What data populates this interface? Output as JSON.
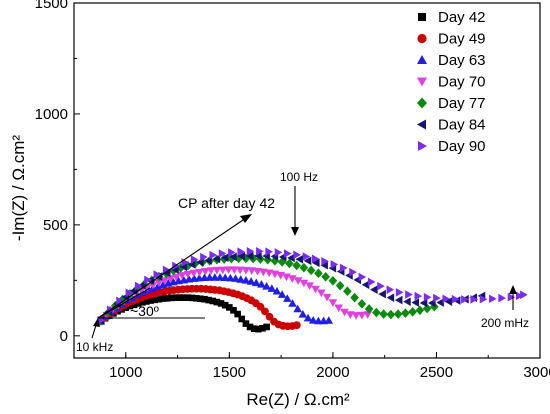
{
  "chart_data": {
    "type": "scatter",
    "xlabel": "Re(Z) / Ω.cm²",
    "ylabel": "-Im(Z) / Ω.cm²",
    "xlim": [
      750,
      3000
    ],
    "ylim": [
      -100,
      1500
    ],
    "xticks": [
      "1000",
      "1500",
      "2000",
      "2500",
      "3000"
    ],
    "yticks": [
      "0",
      "500",
      "1000",
      "1500"
    ],
    "legend_position": "top-right",
    "series": [
      {
        "name": "Day 42",
        "color": "#000000",
        "marker": "square",
        "x": [
          880,
          900,
          920,
          940,
          960,
          980,
          1000,
          1020,
          1040,
          1060,
          1080,
          1100,
          1120,
          1140,
          1160,
          1180,
          1200,
          1220,
          1240,
          1260,
          1280,
          1300,
          1320,
          1340,
          1360,
          1380,
          1400,
          1420,
          1440,
          1460,
          1480,
          1500,
          1520,
          1540,
          1560,
          1580,
          1600,
          1620,
          1640,
          1660,
          1680
        ],
        "y": [
          66,
          79,
          91,
          101,
          111,
          119,
          127,
          134,
          140,
          146,
          151,
          155,
          159,
          162,
          165,
          168,
          169,
          171,
          172,
          172,
          172,
          172,
          171,
          169,
          167,
          165,
          161,
          157,
          152,
          146,
          138,
          128,
          115,
          98,
          76,
          55,
          40,
          32,
          30,
          34,
          40
        ]
      },
      {
        "name": "Day 49",
        "color": "#cc0000",
        "marker": "circle",
        "x": [
          880,
          902,
          924,
          946,
          968,
          990,
          1012,
          1034,
          1056,
          1078,
          1100,
          1122,
          1144,
          1166,
          1188,
          1210,
          1232,
          1254,
          1276,
          1298,
          1320,
          1342,
          1364,
          1386,
          1408,
          1430,
          1452,
          1474,
          1496,
          1518,
          1540,
          1562,
          1584,
          1606,
          1628,
          1650,
          1672,
          1694,
          1716,
          1738,
          1760,
          1782,
          1804,
          1826
        ],
        "y": [
          65,
          83,
          99,
          113,
          126,
          137,
          148,
          157,
          165,
          173,
          180,
          186,
          191,
          196,
          200,
          203,
          206,
          208,
          210,
          211,
          212,
          212,
          212,
          211,
          209,
          207,
          205,
          201,
          197,
          192,
          186,
          179,
          170,
          160,
          147,
          131,
          110,
          86,
          64,
          51,
          45,
          43,
          44,
          48
        ]
      },
      {
        "name": "Day 63",
        "color": "#1f1fe6",
        "marker": "triangle-up",
        "x": [
          880,
          905,
          930,
          955,
          980,
          1005,
          1030,
          1055,
          1080,
          1105,
          1130,
          1155,
          1180,
          1205,
          1230,
          1255,
          1280,
          1305,
          1330,
          1355,
          1380,
          1405,
          1430,
          1455,
          1480,
          1505,
          1530,
          1555,
          1580,
          1605,
          1630,
          1655,
          1680,
          1705,
          1730,
          1755,
          1780,
          1805,
          1830,
          1855,
          1880,
          1905,
          1930,
          1955,
          1980
        ],
        "y": [
          66,
          89,
          109,
          127,
          143,
          158,
          172,
          184,
          195,
          205,
          214,
          222,
          230,
          236,
          242,
          247,
          251,
          255,
          258,
          260,
          262,
          263,
          263,
          263,
          262,
          260,
          258,
          254,
          250,
          245,
          239,
          232,
          223,
          213,
          201,
          186,
          168,
          146,
          121,
          97,
          80,
          70,
          67,
          67,
          69
        ]
      },
      {
        "name": "Day 70",
        "color": "#e040e0",
        "marker": "triangle-down",
        "x": [
          880,
          908,
          936,
          964,
          992,
          1020,
          1048,
          1076,
          1104,
          1132,
          1160,
          1188,
          1216,
          1244,
          1272,
          1300,
          1328,
          1356,
          1384,
          1412,
          1440,
          1468,
          1496,
          1524,
          1552,
          1580,
          1608,
          1636,
          1664,
          1692,
          1720,
          1748,
          1776,
          1804,
          1832,
          1860,
          1888,
          1916,
          1944,
          1972,
          2000,
          2028,
          2056,
          2084,
          2112,
          2140,
          2168
        ],
        "y": [
          66,
          93,
          117,
          138,
          157,
          175,
          191,
          205,
          218,
          229,
          240,
          249,
          258,
          265,
          272,
          278,
          283,
          287,
          291,
          294,
          296,
          297,
          298,
          298,
          297,
          296,
          294,
          291,
          288,
          284,
          279,
          273,
          266,
          258,
          249,
          238,
          226,
          211,
          194,
          174,
          150,
          126,
          107,
          96,
          92,
          93,
          96
        ]
      },
      {
        "name": "Day 77",
        "color": "#0a8a0a",
        "marker": "diamond",
        "x": [
          880,
          915,
          950,
          985,
          1020,
          1055,
          1090,
          1125,
          1160,
          1195,
          1230,
          1265,
          1300,
          1335,
          1370,
          1405,
          1440,
          1475,
          1510,
          1545,
          1580,
          1615,
          1650,
          1685,
          1720,
          1755,
          1790,
          1825,
          1860,
          1895,
          1930,
          1965,
          2000,
          2035,
          2070,
          2105,
          2140,
          2175,
          2210,
          2245,
          2280,
          2315,
          2350,
          2385,
          2420,
          2455,
          2490
        ],
        "y": [
          68,
          104,
          136,
          164,
          189,
          212,
          232,
          250,
          267,
          281,
          294,
          306,
          316,
          325,
          332,
          338,
          343,
          346,
          348,
          349,
          349,
          348,
          346,
          343,
          338,
          333,
          326,
          317,
          307,
          295,
          282,
          266,
          248,
          226,
          201,
          172,
          144,
          121,
          105,
          98,
          96,
          98,
          102,
          108,
          115,
          123,
          131
        ]
      },
      {
        "name": "Day 84",
        "color": "#161670",
        "marker": "triangle-left",
        "x": [
          880,
          920,
          960,
          1000,
          1040,
          1080,
          1120,
          1160,
          1200,
          1240,
          1280,
          1320,
          1360,
          1400,
          1440,
          1480,
          1520,
          1560,
          1600,
          1640,
          1680,
          1720,
          1760,
          1800,
          1840,
          1880,
          1920,
          1960,
          2000,
          2040,
          2080,
          2120,
          2160,
          2200,
          2240,
          2280,
          2320,
          2360,
          2400,
          2440,
          2480,
          2520,
          2560,
          2600,
          2640,
          2680,
          2720
        ],
        "y": [
          68,
          108,
          144,
          175,
          203,
          227,
          249,
          267,
          284,
          298,
          311,
          322,
          332,
          340,
          347,
          352,
          356,
          359,
          360,
          361,
          360,
          358,
          355,
          351,
          345,
          338,
          329,
          318,
          305,
          290,
          272,
          252,
          230,
          208,
          188,
          172,
          161,
          154,
          150,
          148,
          148,
          150,
          154,
          159,
          165,
          172,
          180
        ]
      },
      {
        "name": "Day 90",
        "color": "#7b2cf0",
        "marker": "triangle-right",
        "x": [
          880,
          925,
          970,
          1015,
          1060,
          1105,
          1150,
          1195,
          1240,
          1285,
          1330,
          1375,
          1420,
          1465,
          1510,
          1555,
          1600,
          1645,
          1690,
          1735,
          1780,
          1825,
          1870,
          1915,
          1960,
          2005,
          2050,
          2095,
          2140,
          2185,
          2230,
          2275,
          2320,
          2365,
          2410,
          2455,
          2500,
          2545,
          2590,
          2635,
          2680,
          2725,
          2770,
          2815,
          2860,
          2900,
          2920
        ],
        "y": [
          70,
          117,
          158,
          194,
          225,
          252,
          276,
          297,
          315,
          331,
          344,
          355,
          364,
          371,
          376,
          379,
          381,
          381,
          379,
          376,
          371,
          365,
          357,
          347,
          336,
          322,
          306,
          287,
          265,
          243,
          224,
          208,
          196,
          186,
          179,
          174,
          170,
          167,
          165,
          164,
          164,
          165,
          167,
          170,
          174,
          180,
          185
        ]
      }
    ],
    "annotations": [
      {
        "text": "CP after day 42",
        "type": "arrow-label"
      },
      {
        "text": "100 Hz",
        "type": "arrow-label"
      },
      {
        "text": "10 kHz",
        "type": "arrow-label"
      },
      {
        "text": "200 mHz",
        "type": "arrow-label"
      },
      {
        "text": "~30º",
        "type": "angle-label"
      }
    ]
  }
}
